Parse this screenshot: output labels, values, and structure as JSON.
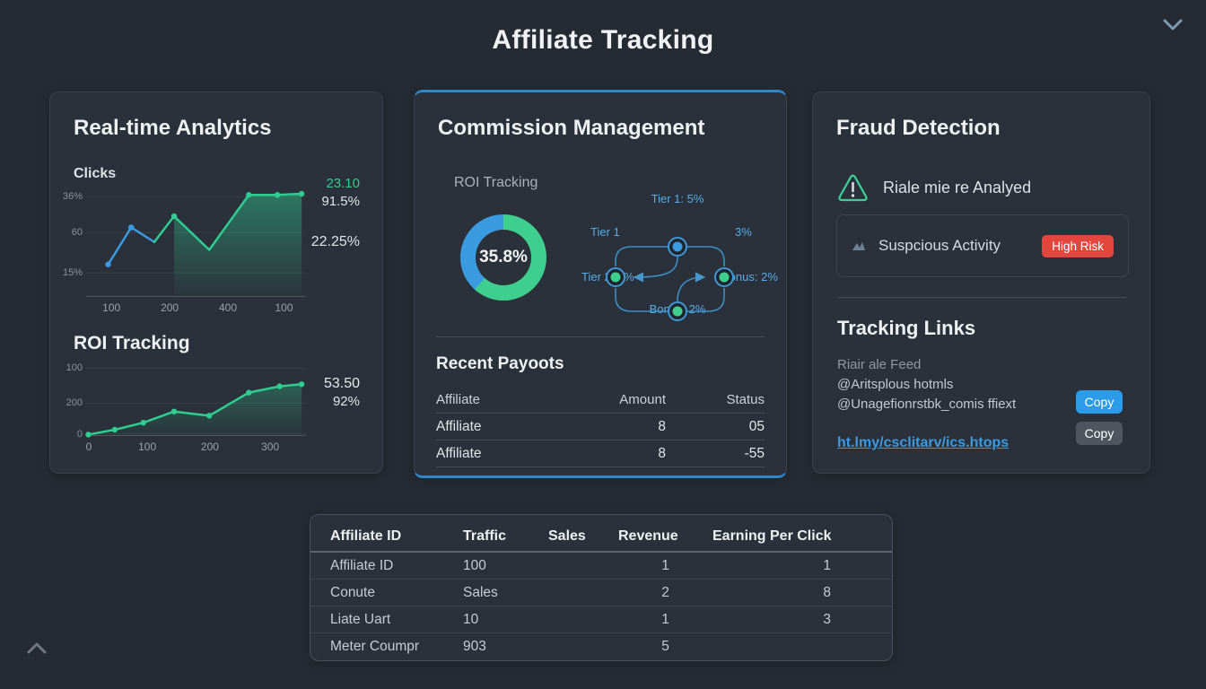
{
  "header": {
    "title": "Affiliate Tracking"
  },
  "analytics": {
    "title": "Real-time Analytics",
    "clicks_label": "Clicks",
    "clicks_stats": {
      "primary": "23.10",
      "secondary": "91.5%",
      "tertiary": "22.25%"
    },
    "roi_title": "ROI Tracking",
    "roi_stats": {
      "primary": "53.50",
      "secondary": "92%"
    }
  },
  "commission": {
    "title": "Commission Management",
    "roi_label": "ROI Tracking",
    "donut_label": "35.8%",
    "tier_labels": {
      "top": "Tier 1: 5%",
      "left_top": "Tier 1",
      "right_top": "3%",
      "left_bottom": "Tier 2: 5%",
      "right_bottom": "Bonus: 2%",
      "bottom": "Bonus: 2%"
    },
    "payouts": {
      "title": "Recent Payoots",
      "headers": [
        "Affiliate",
        "Amount",
        "Status"
      ],
      "rows": [
        [
          "Affiliate",
          "8",
          "05"
        ],
        [
          "Affiliate",
          "8",
          "-55"
        ]
      ]
    }
  },
  "fraud": {
    "title": "Fraud Detection",
    "alert_text": "Riale mie re Analyed",
    "suspicious_label": "Suspcious Activity",
    "risk_badge": "High Risk",
    "tracking": {
      "title": "Tracking Links",
      "feed_label": "Riair ale Feed",
      "handle_1": "@Aritsplous hotmls",
      "handle_2": "@Unagefionrstbk_comis ffiext",
      "link": "ht.lmy/csclitarv/ics.htops",
      "copy_primary": "Copy",
      "copy_secondary": "Copy"
    }
  },
  "stats_table": {
    "headers": [
      "Affiliate ID",
      "Traffic",
      "Sales",
      "Revenue",
      "Earning Per Click"
    ],
    "rows": [
      [
        "Affiliate ID",
        "100",
        "",
        "1",
        "1"
      ],
      [
        "Conute",
        "Sales",
        "",
        "2",
        "8"
      ],
      [
        "Liate Uart",
        "10",
        "",
        "1",
        "3"
      ],
      [
        "Meter Coumpr",
        "903",
        "",
        "5",
        ""
      ]
    ]
  },
  "chart_data": [
    {
      "id": "clicks",
      "type": "line",
      "title": "Clicks",
      "x_pct": [
        10,
        20.5,
        31,
        40,
        56,
        74,
        87,
        98
      ],
      "y_pct": [
        29,
        62,
        49,
        72,
        42,
        91,
        91,
        92
      ],
      "blue_count": 3,
      "colors": {
        "blue": "#3b9be0",
        "green": "#2fcd92"
      },
      "dots": [
        0,
        1,
        3,
        5,
        6,
        7
      ],
      "area_from": 3,
      "y_tick_labels": [
        "36%",
        "60",
        "15%"
      ],
      "y_tick_pos": [
        10.5,
        42.5,
        78.5
      ],
      "x_tick_labels": [
        "100",
        "200",
        "400",
        "100"
      ],
      "x_tick_pos": [
        11.5,
        38,
        64.5,
        90
      ]
    },
    {
      "id": "roi",
      "type": "line",
      "title": "ROI Tracking",
      "x_pct": [
        1,
        13,
        26,
        40,
        56,
        74,
        88,
        98
      ],
      "y_pct": [
        2,
        9,
        19,
        35,
        29,
        62,
        71,
        74
      ],
      "color": "#2fcd92",
      "dots": [
        0,
        1,
        2,
        3,
        4,
        5,
        6,
        7
      ],
      "area_from": 0,
      "y_tick_labels": [
        "100",
        "200",
        "0"
      ],
      "y_tick_pos": [
        3,
        53,
        97
      ],
      "x_tick_labels": [
        "0",
        "100",
        "200",
        "300"
      ],
      "x_tick_pos": [
        1.2,
        27.8,
        56.3,
        83.7
      ]
    },
    {
      "id": "donut",
      "type": "donut",
      "center_label": "35.8%",
      "segments": [
        {
          "name": "green",
          "color": "#3ecf8e",
          "deg": 222
        },
        {
          "name": "blue",
          "color": "#3b9be0",
          "deg": 138
        }
      ]
    }
  ]
}
